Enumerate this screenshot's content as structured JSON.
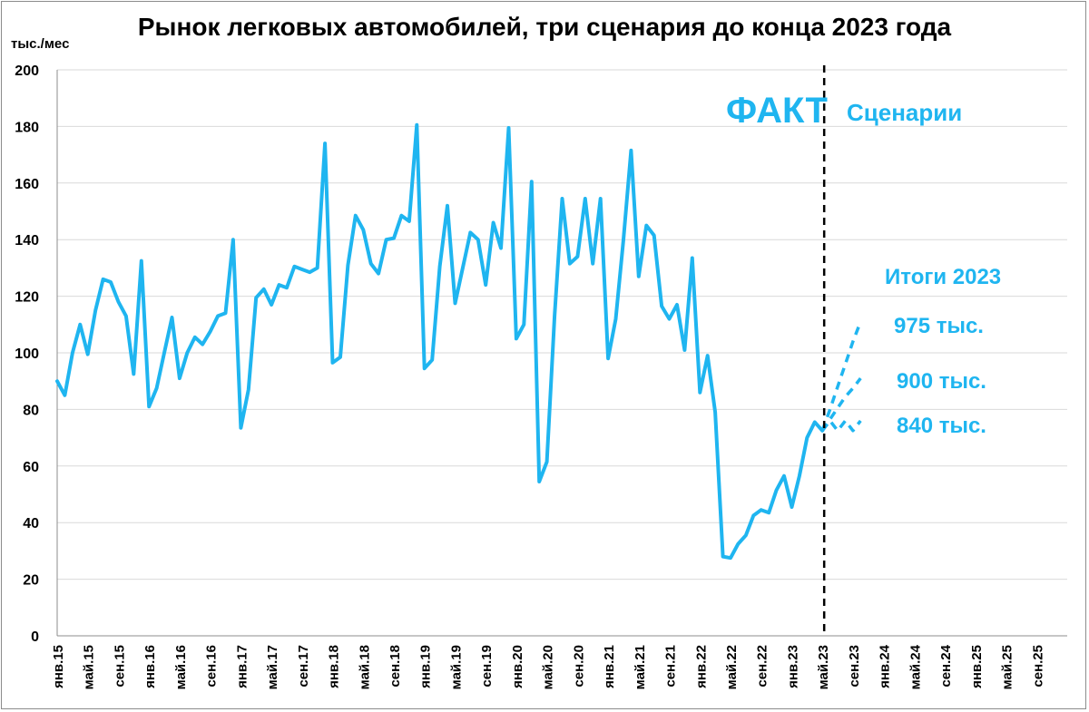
{
  "title": "Рынок легковых автомобилей, три сценария до конца 2023 года",
  "unit_label": "тыс./мес",
  "annotations": {
    "fact": "ФАКТ",
    "scenarios": "Сценарии",
    "totals": "Итоги 2023",
    "s_high": "975 тыс.",
    "s_mid": "900 тыс.",
    "s_low": "840 тыс."
  },
  "colors": {
    "line": "#1fb5f0",
    "grid": "#d9d9d9",
    "divider": "#000000"
  },
  "chart_data": {
    "type": "line",
    "title": "Рынок легковых автомобилей, три сценария до конца 2023 года",
    "ylabel": "тыс./мес",
    "ylim": [
      0,
      200
    ],
    "yticks": [
      0,
      20,
      40,
      60,
      80,
      100,
      120,
      140,
      160,
      180,
      200
    ],
    "grid": true,
    "x_start": "янв.15",
    "x_end": "дек.25",
    "xtick_labels": [
      "янв.15",
      "май.15",
      "сен.15",
      "янв.16",
      "май.16",
      "сен.16",
      "янв.17",
      "май.17",
      "сен.17",
      "янв.18",
      "май.18",
      "сен.18",
      "янв.19",
      "май.19",
      "сен.19",
      "янв.20",
      "май.20",
      "сен.20",
      "янв.21",
      "май.21",
      "сен.21",
      "янв.22",
      "май.22",
      "сен.22",
      "янв.23",
      "май.23",
      "сен.23",
      "янв.24",
      "май.24",
      "сен.24",
      "янв.25",
      "май.25",
      "сен.25"
    ],
    "divider_at": "май.23",
    "series": [
      {
        "name": "ФАКТ",
        "style": "solid",
        "values": [
          90,
          85,
          100,
          110,
          99.5,
          115,
          126,
          125,
          118,
          113,
          92.5,
          132.5,
          81,
          87.5,
          100,
          112.5,
          91,
          100,
          105.5,
          103,
          107.5,
          113,
          114,
          140,
          73.5,
          87,
          119.5,
          122.5,
          117,
          124,
          123,
          130.5,
          129.5,
          128.5,
          130,
          174,
          96.5,
          98.5,
          131,
          148.5,
          143.5,
          131.5,
          128,
          140,
          140.5,
          148.5,
          146.5,
          180.5,
          94.5,
          97.5,
          130.5,
          152,
          117.5,
          130,
          142.5,
          140,
          124,
          146,
          137,
          179.5,
          105,
          110,
          160.5,
          54.5,
          61.5,
          113,
          154.5,
          131.5,
          134,
          154.5,
          131.5,
          154.5,
          98,
          112,
          140,
          171.5,
          127,
          145,
          141.5,
          116.5,
          112,
          117,
          101,
          133.5,
          86,
          99,
          79,
          28,
          27.5,
          32.5,
          35.5,
          42.5,
          44.5,
          43.5,
          51.5,
          56.5,
          45.5,
          56.5,
          70,
          75.5,
          72.5
        ]
      },
      {
        "name": "975 тыс.",
        "style": "dashed",
        "start_index": 100,
        "values": [
          72.5,
          80,
          88,
          96,
          104,
          111
        ]
      },
      {
        "name": "900 тыс.",
        "style": "dashed",
        "start_index": 100,
        "values": [
          72.5,
          76.5,
          80.5,
          84.5,
          87.5,
          91
        ]
      },
      {
        "name": "840 тыс.",
        "style": "dashed",
        "start_index": 100,
        "values": [
          72.5,
          76,
          72.5,
          76,
          72.5,
          76
        ]
      }
    ]
  }
}
